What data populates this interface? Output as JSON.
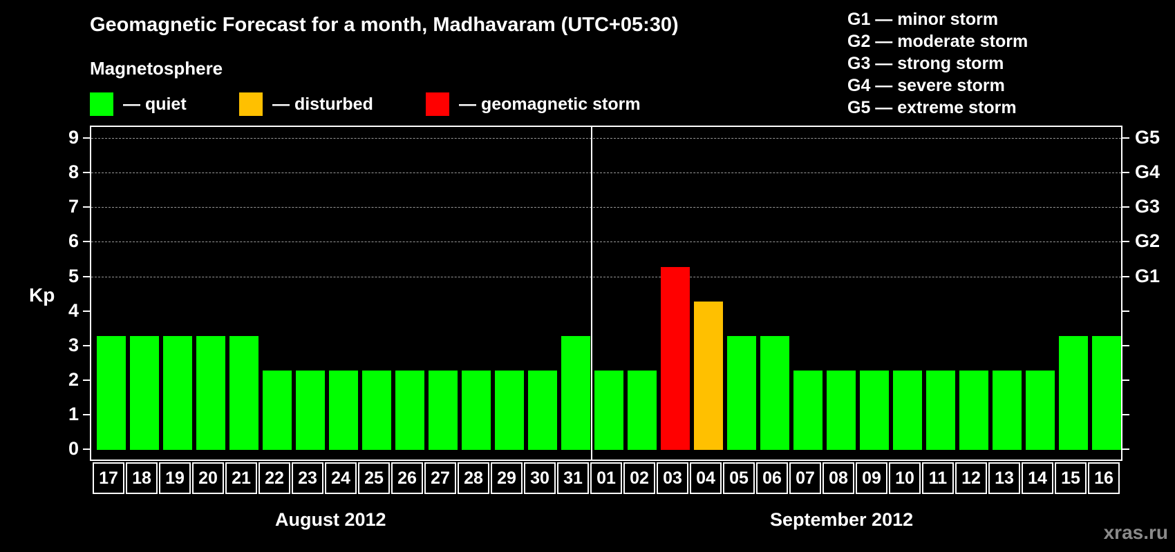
{
  "title": "Geomagnetic Forecast for a month, Madhavaram (UTC+05:30)",
  "subtitle": "Magnetosphere",
  "legend": [
    {
      "label": "— quiet",
      "color": "#00ff00"
    },
    {
      "label": "— disturbed",
      "color": "#ffc000"
    },
    {
      "label": "— geomagnetic storm",
      "color": "#ff0000"
    }
  ],
  "g_legend": [
    "G1 — minor storm",
    "G2 — moderate storm",
    "G3 — strong storm",
    "G4 — severe storm",
    "G5 — extreme storm"
  ],
  "y_axis_label": "Kp",
  "y_ticks": [
    "0",
    "1",
    "2",
    "3",
    "4",
    "5",
    "6",
    "7",
    "8",
    "9"
  ],
  "g_ticks": [
    {
      "label": "G1",
      "kp": 5
    },
    {
      "label": "G2",
      "kp": 6
    },
    {
      "label": "G3",
      "kp": 7
    },
    {
      "label": "G4",
      "kp": 8
    },
    {
      "label": "G5",
      "kp": 9
    }
  ],
  "months": [
    "August 2012",
    "September 2012"
  ],
  "watermark": "xras.ru",
  "chart_data": {
    "type": "bar",
    "title": "Geomagnetic Forecast for a month, Madhavaram (UTC+05:30)",
    "xlabel": "",
    "ylabel": "Kp",
    "ylim": [
      0,
      9
    ],
    "grid": "horizontal dashed at Kp 5-9",
    "categories": [
      "17",
      "18",
      "19",
      "20",
      "21",
      "22",
      "23",
      "24",
      "25",
      "26",
      "27",
      "28",
      "29",
      "30",
      "31",
      "01",
      "02",
      "03",
      "04",
      "05",
      "06",
      "07",
      "08",
      "09",
      "10",
      "11",
      "12",
      "13",
      "14",
      "15",
      "16"
    ],
    "values": [
      3,
      3,
      3,
      3,
      3,
      2,
      2,
      2,
      2,
      2,
      2,
      2,
      2,
      2,
      3,
      2,
      2,
      5,
      4,
      3,
      3,
      2,
      2,
      2,
      2,
      2,
      2,
      2,
      2,
      3,
      3
    ],
    "status": [
      "quiet",
      "quiet",
      "quiet",
      "quiet",
      "quiet",
      "quiet",
      "quiet",
      "quiet",
      "quiet",
      "quiet",
      "quiet",
      "quiet",
      "quiet",
      "quiet",
      "quiet",
      "quiet",
      "quiet",
      "storm",
      "disturbed",
      "quiet",
      "quiet",
      "quiet",
      "quiet",
      "quiet",
      "quiet",
      "quiet",
      "quiet",
      "quiet",
      "quiet",
      "quiet",
      "quiet"
    ],
    "month_groups": [
      {
        "label": "August 2012",
        "from": "17",
        "to": "31"
      },
      {
        "label": "September 2012",
        "from": "01",
        "to": "16"
      }
    ],
    "colors": {
      "quiet": "#00ff00",
      "disturbed": "#ffc000",
      "storm": "#ff0000"
    },
    "secondary_axis": {
      "G1": 5,
      "G2": 6,
      "G3": 7,
      "G4": 8,
      "G5": 9
    }
  }
}
